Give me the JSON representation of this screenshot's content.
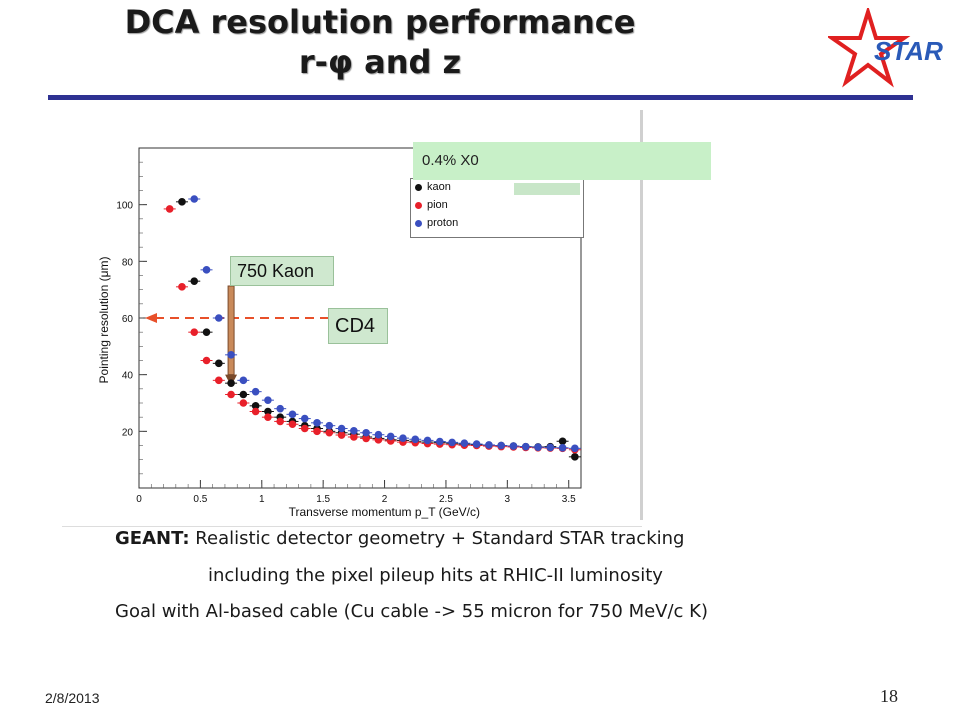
{
  "slide": {
    "title_line1": "DCA resolution performance",
    "title_line2": "r-φ and z",
    "logo_text": "STAR",
    "date": "2/8/2013",
    "page_number": "18",
    "accent_color": "#2e3192",
    "logo_color": "#e02020"
  },
  "callouts": {
    "top_label": "0.4% X0",
    "kaon_label": "750 Kaon",
    "cd4_label": "CD4"
  },
  "body_text": {
    "line1_bold": "GEANT:",
    "line1_rest": "Realistic detector geometry + Standard STAR tracking",
    "line2": "including the pixel pileup hits at RHIC-II luminosity",
    "line3": "Goal with Al-based cable (Cu cable -> 55 micron for 750 MeV/c K)"
  },
  "chart_data": {
    "type": "scatter",
    "xlabel": "Transverse momentum p_T (GeV/c)",
    "ylabel": "Pointing resolution (μm)",
    "xlim": [
      0,
      3.6
    ],
    "ylim": [
      0,
      120
    ],
    "xticks": [
      "0",
      "0.5",
      "1",
      "1.5",
      "2",
      "2.5",
      "3",
      "3.5"
    ],
    "yticks": [
      "20",
      "40",
      "60",
      "80",
      "100"
    ],
    "legend_position": "top-right",
    "reference_line": {
      "y": 60,
      "label": "CD4"
    },
    "annotation_arrow": {
      "x": 0.75,
      "label": "750 Kaon"
    },
    "series": [
      {
        "name": "kaon",
        "color": "#111111",
        "points": [
          [
            0.35,
            101
          ],
          [
            0.45,
            73
          ],
          [
            0.55,
            55
          ],
          [
            0.65,
            44
          ],
          [
            0.75,
            37
          ],
          [
            0.85,
            33
          ],
          [
            0.95,
            29
          ],
          [
            1.05,
            27
          ],
          [
            1.15,
            25
          ],
          [
            1.25,
            23.5
          ],
          [
            1.35,
            22
          ],
          [
            1.45,
            21
          ],
          [
            1.55,
            20
          ],
          [
            1.65,
            19.5
          ],
          [
            1.75,
            19
          ],
          [
            1.85,
            18
          ],
          [
            1.95,
            17.5
          ],
          [
            2.05,
            17
          ],
          [
            2.15,
            16.8
          ],
          [
            2.25,
            16.5
          ],
          [
            2.35,
            16.2
          ],
          [
            2.45,
            16
          ],
          [
            2.55,
            15.8
          ],
          [
            2.65,
            15.5
          ],
          [
            2.75,
            15.3
          ],
          [
            2.85,
            15.1
          ],
          [
            2.95,
            15
          ],
          [
            3.05,
            14.8
          ],
          [
            3.15,
            14.6
          ],
          [
            3.25,
            14.5
          ],
          [
            3.35,
            14.6
          ],
          [
            3.45,
            16.5
          ],
          [
            3.55,
            11
          ]
        ]
      },
      {
        "name": "pion",
        "color": "#e8202a",
        "points": [
          [
            0.25,
            98.5
          ],
          [
            0.35,
            71
          ],
          [
            0.45,
            55
          ],
          [
            0.55,
            45
          ],
          [
            0.65,
            38
          ],
          [
            0.75,
            33
          ],
          [
            0.85,
            30
          ],
          [
            0.95,
            27
          ],
          [
            1.05,
            25
          ],
          [
            1.15,
            23.5
          ],
          [
            1.25,
            22.5
          ],
          [
            1.35,
            21
          ],
          [
            1.45,
            20
          ],
          [
            1.55,
            19.5
          ],
          [
            1.65,
            18.7
          ],
          [
            1.75,
            18
          ],
          [
            1.85,
            17.5
          ],
          [
            1.95,
            17
          ],
          [
            2.05,
            16.6
          ],
          [
            2.15,
            16.2
          ],
          [
            2.25,
            16
          ],
          [
            2.35,
            15.7
          ],
          [
            2.45,
            15.5
          ],
          [
            2.55,
            15.3
          ],
          [
            2.65,
            15.1
          ],
          [
            2.75,
            15
          ],
          [
            2.85,
            14.8
          ],
          [
            2.95,
            14.6
          ],
          [
            3.05,
            14.5
          ],
          [
            3.15,
            14.3
          ],
          [
            3.25,
            14.2
          ],
          [
            3.35,
            14.1
          ],
          [
            3.45,
            14
          ],
          [
            3.55,
            13.5
          ]
        ]
      },
      {
        "name": "proton",
        "color": "#3a4fc0",
        "points": [
          [
            0.45,
            102
          ],
          [
            0.55,
            77
          ],
          [
            0.65,
            60
          ],
          [
            0.75,
            47
          ],
          [
            0.85,
            38
          ],
          [
            0.95,
            34
          ],
          [
            1.05,
            31
          ],
          [
            1.15,
            28
          ],
          [
            1.25,
            26
          ],
          [
            1.35,
            24.5
          ],
          [
            1.45,
            23
          ],
          [
            1.55,
            22
          ],
          [
            1.65,
            21
          ],
          [
            1.75,
            20.2
          ],
          [
            1.85,
            19.5
          ],
          [
            1.95,
            18.8
          ],
          [
            2.05,
            18.2
          ],
          [
            2.15,
            17.6
          ],
          [
            2.25,
            17.2
          ],
          [
            2.35,
            16.8
          ],
          [
            2.45,
            16.4
          ],
          [
            2.55,
            16.1
          ],
          [
            2.65,
            15.8
          ],
          [
            2.75,
            15.5
          ],
          [
            2.85,
            15.2
          ],
          [
            2.95,
            15
          ],
          [
            3.05,
            14.8
          ],
          [
            3.15,
            14.6
          ],
          [
            3.25,
            14.4
          ],
          [
            3.35,
            14.3
          ],
          [
            3.45,
            14.2
          ],
          [
            3.55,
            14
          ]
        ]
      }
    ]
  }
}
